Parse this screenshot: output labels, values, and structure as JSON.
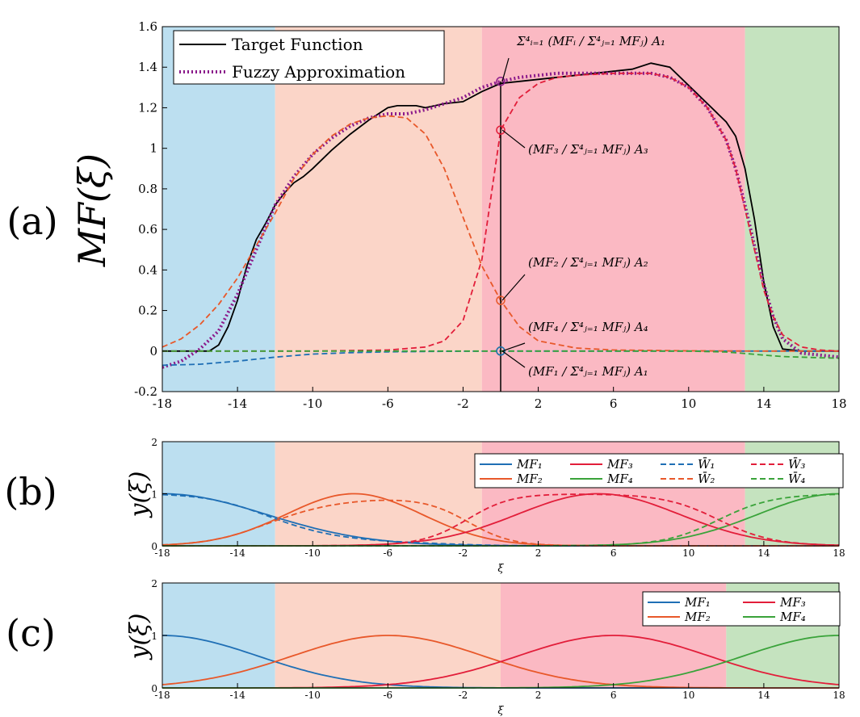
{
  "colors": {
    "band_blue": "#bcdff0",
    "band_peach": "#fbd5c8",
    "band_pink": "#fbb9c3",
    "band_green": "#c5e3bf",
    "mf1": "#1f6fb5",
    "mf2": "#e8582a",
    "mf3": "#e21e3a",
    "mf4": "#3aa33a",
    "target": "#000000",
    "fuzzy": "#8b1a8b"
  },
  "chart_data": [
    {
      "id": "a",
      "type": "line",
      "panel_label": "(a)",
      "ylabel": "MF(ξ)",
      "xlim": [
        -18,
        18
      ],
      "ylim": [
        -0.2,
        1.6
      ],
      "xticks": [
        "-18",
        "-14",
        "-10",
        "-6",
        "-2",
        "2",
        "6",
        "10",
        "14",
        "18"
      ],
      "yticks": [
        "-0.2",
        "0",
        "0.2",
        "0.4",
        "0.6",
        "0.8",
        "1",
        "1.2",
        "1.4",
        "1.6"
      ],
      "bands": [
        {
          "from": -18,
          "to": -12,
          "color": "band_blue"
        },
        {
          "from": -12,
          "to": -1,
          "color": "band_peach"
        },
        {
          "from": -1,
          "to": 13,
          "color": "band_pink"
        },
        {
          "from": 13,
          "to": 18,
          "color": "band_green"
        }
      ],
      "legend": [
        "Target Function",
        "Fuzzy Approximation"
      ],
      "series": [
        {
          "name": "Target Function",
          "color": "target",
          "style": "solid",
          "x": [
            -18,
            -15.5,
            -15,
            -14.5,
            -14,
            -13.5,
            -13,
            -12.5,
            -12,
            -11.5,
            -11,
            -10.5,
            -10,
            -9,
            -8,
            -7,
            -6,
            -5.5,
            -5,
            -4.5,
            -4,
            -3,
            -2,
            -1,
            0,
            1,
            2,
            3,
            4,
            5,
            6,
            7,
            8,
            9,
            10,
            11,
            12,
            12.5,
            13,
            13.5,
            14,
            14.5,
            15,
            16,
            17,
            18
          ],
          "y": [
            0,
            0,
            0.03,
            0.12,
            0.25,
            0.42,
            0.55,
            0.63,
            0.72,
            0.78,
            0.83,
            0.86,
            0.9,
            0.99,
            1.07,
            1.14,
            1.2,
            1.21,
            1.21,
            1.21,
            1.2,
            1.22,
            1.23,
            1.28,
            1.32,
            1.33,
            1.34,
            1.35,
            1.36,
            1.37,
            1.38,
            1.39,
            1.42,
            1.4,
            1.31,
            1.22,
            1.13,
            1.06,
            0.9,
            0.65,
            0.34,
            0.12,
            0.01,
            0,
            0,
            0
          ]
        },
        {
          "name": "Fuzzy Approximation",
          "color": "fuzzy",
          "style": "dotted",
          "x": [
            -18,
            -17,
            -16,
            -15,
            -14,
            -13,
            -12,
            -11,
            -10,
            -9,
            -8,
            -7,
            -6,
            -5,
            -4,
            -3,
            -2,
            -1,
            0,
            1,
            2,
            3,
            4,
            5,
            6,
            7,
            8,
            9,
            10,
            11,
            12,
            12.5,
            13,
            13.5,
            14,
            14.5,
            15,
            16,
            17,
            18
          ],
          "y": [
            -0.08,
            -0.05,
            0.01,
            0.1,
            0.28,
            0.5,
            0.72,
            0.86,
            0.97,
            1.05,
            1.11,
            1.15,
            1.17,
            1.17,
            1.19,
            1.22,
            1.25,
            1.3,
            1.33,
            1.35,
            1.36,
            1.37,
            1.37,
            1.37,
            1.37,
            1.37,
            1.37,
            1.35,
            1.3,
            1.2,
            1.04,
            0.9,
            0.72,
            0.52,
            0.33,
            0.17,
            0.06,
            -0.01,
            -0.02,
            -0.03
          ]
        },
        {
          "name": "W1 term",
          "color": "mf1",
          "style": "dashed",
          "x": [
            -18,
            -16,
            -14,
            -12,
            -10,
            -8,
            -6,
            -4,
            -2,
            0,
            2,
            6,
            10,
            14,
            18
          ],
          "y": [
            -0.07,
            -0.065,
            -0.05,
            -0.03,
            -0.015,
            -0.008,
            -0.004,
            -0.002,
            -0.001,
            0,
            0,
            0,
            0,
            0,
            0
          ]
        },
        {
          "name": "W2 term",
          "color": "mf2",
          "style": "dashed",
          "x": [
            -18,
            -17,
            -16,
            -15,
            -14,
            -13,
            -12,
            -11,
            -10,
            -9,
            -8,
            -7,
            -6,
            -5,
            -4,
            -3,
            -2,
            -1,
            0,
            1,
            2,
            4,
            6,
            10,
            14,
            18
          ],
          "y": [
            0.02,
            0.06,
            0.13,
            0.23,
            0.36,
            0.52,
            0.68,
            0.85,
            0.97,
            1.06,
            1.12,
            1.15,
            1.16,
            1.15,
            1.07,
            0.9,
            0.66,
            0.42,
            0.25,
            0.12,
            0.05,
            0.015,
            0.005,
            0.001,
            0,
            0
          ]
        },
        {
          "name": "W3 term",
          "color": "mf3",
          "style": "dashed",
          "x": [
            -18,
            -10,
            -6,
            -4,
            -3,
            -2,
            -1,
            0,
            1,
            2,
            3,
            4,
            6,
            8,
            9,
            10,
            11,
            12,
            12.5,
            13,
            13.5,
            14,
            14.5,
            15,
            16,
            17,
            18
          ],
          "y": [
            0,
            0,
            0.005,
            0.02,
            0.05,
            0.15,
            0.45,
            1.09,
            1.25,
            1.32,
            1.35,
            1.36,
            1.37,
            1.37,
            1.35,
            1.3,
            1.2,
            1.04,
            0.9,
            0.7,
            0.5,
            0.3,
            0.17,
            0.08,
            0.02,
            0.005,
            0
          ]
        },
        {
          "name": "W4 term",
          "color": "mf4",
          "style": "dashed",
          "x": [
            -18,
            -10,
            0,
            10,
            12,
            13,
            14,
            15,
            16,
            17,
            18
          ],
          "y": [
            0,
            0,
            0,
            0,
            -0.005,
            -0.012,
            -0.02,
            -0.027,
            -0.03,
            -0.033,
            -0.035
          ]
        }
      ],
      "markers": [
        {
          "x": 0,
          "y": 1.33,
          "color": "fuzzy"
        },
        {
          "x": 0,
          "y": 1.09,
          "color": "mf3"
        },
        {
          "x": 0,
          "y": 0.25,
          "color": "mf2"
        },
        {
          "x": 0,
          "y": 0,
          "color": "mf4"
        },
        {
          "x": 0,
          "y": 0,
          "color": "mf1"
        }
      ],
      "annotations": [
        {
          "text": "Σ⁴ᵢ₌₁ (MFᵢ / Σ⁴ⱼ₌₁ MFⱼ) A₁",
          "x": 0,
          "y": 1.33
        },
        {
          "text": "(MF₃ / Σ⁴ⱼ₌₁ MFⱼ) A₃",
          "x": 0,
          "y": 1.09
        },
        {
          "text": "(MF₂ / Σ⁴ⱼ₌₁ MFⱼ) A₂",
          "x": 0,
          "y": 0.25
        },
        {
          "text": "(MF₄ / Σ⁴ⱼ₌₁ MFⱼ) A₄",
          "x": 0,
          "y": 0
        },
        {
          "text": "(MF₁ / Σ⁴ⱼ₌₁ MFⱼ) A₁",
          "x": 0,
          "y": 0
        }
      ]
    },
    {
      "id": "b",
      "type": "line",
      "panel_label": "(b)",
      "ylabel": "y(ξ)",
      "xlabel": "ξ",
      "xlim": [
        -18,
        18
      ],
      "ylim": [
        0,
        2
      ],
      "xticks": [
        "-18",
        "-14",
        "-10",
        "-6",
        "-2",
        "2",
        "6",
        "10",
        "14",
        "18"
      ],
      "yticks": [
        "0",
        "1",
        "2"
      ],
      "bands": [
        {
          "from": -18,
          "to": -12,
          "color": "band_blue"
        },
        {
          "from": -12,
          "to": -1,
          "color": "band_peach"
        },
        {
          "from": -1,
          "to": 13,
          "color": "band_pink"
        },
        {
          "from": 13,
          "to": 18,
          "color": "band_green"
        }
      ],
      "legend": [
        "MF₁",
        "MF₃",
        "W̄₁",
        "W̄₃",
        "MF₂",
        "MF₄",
        "W̄₂",
        "W̄₄"
      ],
      "series": [
        {
          "name": "MF₁",
          "color": "mf1",
          "style": "solid",
          "gauss": {
            "c": -18,
            "s": 5.5
          }
        },
        {
          "name": "MF₂",
          "color": "mf2",
          "style": "solid",
          "gauss": {
            "c": -7.8,
            "s": 3.6
          }
        },
        {
          "name": "MF₃",
          "color": "mf3",
          "style": "solid",
          "gauss": {
            "c": 5.2,
            "s": 4.3
          }
        },
        {
          "name": "MF₄",
          "color": "mf4",
          "style": "solid",
          "gauss": {
            "c": 18,
            "s": 4.3
          }
        },
        {
          "name": "W̄₁",
          "color": "mf1",
          "style": "dashed",
          "norm": 0
        },
        {
          "name": "W̄₂",
          "color": "mf2",
          "style": "dashed",
          "norm": 1
        },
        {
          "name": "W̄₃",
          "color": "mf3",
          "style": "dashed",
          "norm": 2
        },
        {
          "name": "W̄₄",
          "color": "mf4",
          "style": "dashed",
          "norm": 3
        }
      ]
    },
    {
      "id": "c",
      "type": "line",
      "panel_label": "(c)",
      "ylabel": "y(ξ)",
      "xlabel": "ξ",
      "xlim": [
        -18,
        18
      ],
      "ylim": [
        0,
        2
      ],
      "xticks": [
        "-18",
        "-14",
        "-10",
        "-6",
        "-2",
        "2",
        "6",
        "10",
        "14",
        "18"
      ],
      "yticks": [
        "0",
        "1",
        "2"
      ],
      "bands": [
        {
          "from": -18,
          "to": -12,
          "color": "band_blue"
        },
        {
          "from": -12,
          "to": 0,
          "color": "band_peach"
        },
        {
          "from": 0,
          "to": 12,
          "color": "band_pink"
        },
        {
          "from": 12,
          "to": 18,
          "color": "band_green"
        }
      ],
      "legend": [
        "MF₁",
        "MF₃",
        "MF₂",
        "MF₄"
      ],
      "series": [
        {
          "name": "MF₁",
          "color": "mf1",
          "style": "solid",
          "gauss": {
            "c": -18,
            "s": 5.1
          }
        },
        {
          "name": "MF₂",
          "color": "mf2",
          "style": "solid",
          "gauss": {
            "c": -6,
            "s": 5.1
          }
        },
        {
          "name": "MF₃",
          "color": "mf3",
          "style": "solid",
          "gauss": {
            "c": 6,
            "s": 5.1
          }
        },
        {
          "name": "MF₄",
          "color": "mf4",
          "style": "solid",
          "gauss": {
            "c": 18,
            "s": 5.1
          }
        }
      ]
    }
  ]
}
